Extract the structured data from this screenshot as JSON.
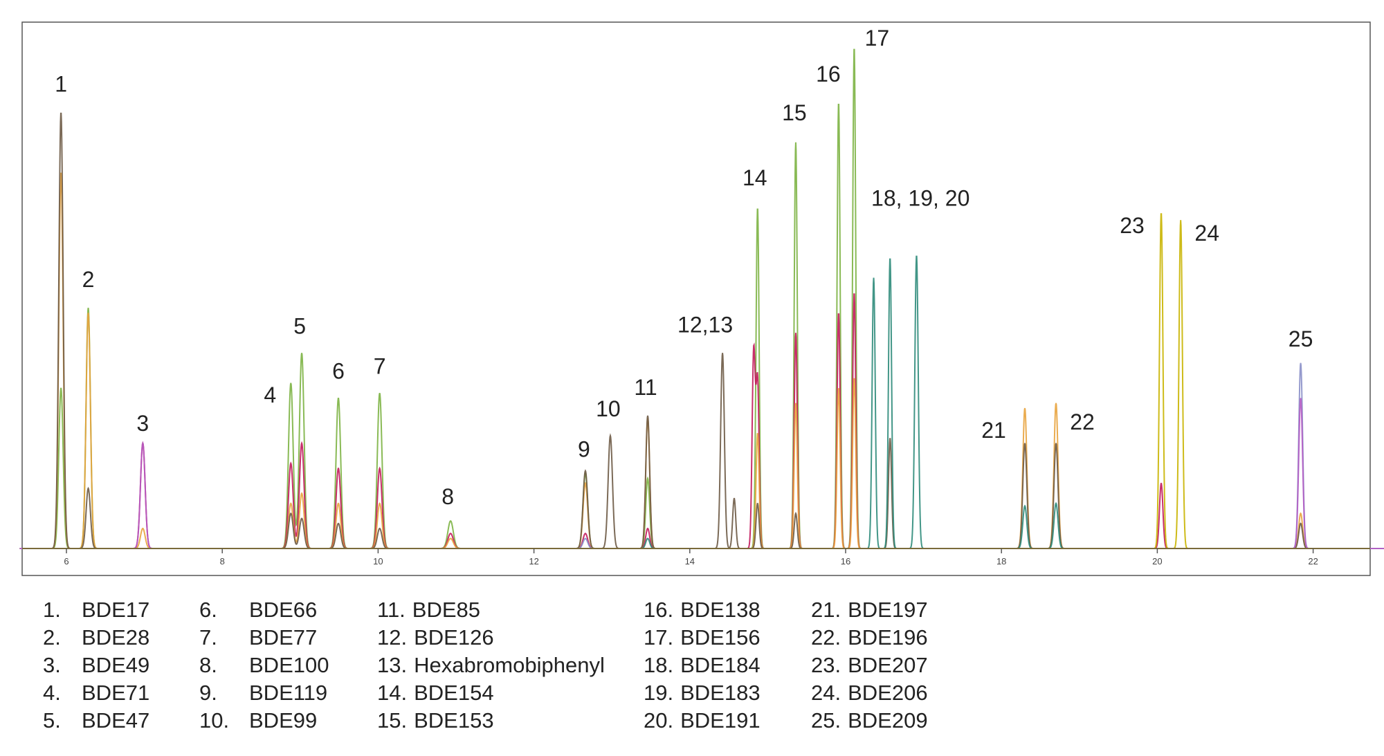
{
  "chart_data": {
    "type": "line",
    "title": "",
    "xlabel": "",
    "ylabel": "",
    "xlim": [
      5.4,
      23.2
    ],
    "ylim": [
      0,
      1.0
    ],
    "x_ticks": [
      6,
      8,
      10,
      12,
      14,
      16,
      18,
      20,
      22
    ],
    "x_tick_labels": [
      "6",
      "8",
      "10",
      "12",
      "14",
      "16",
      "18",
      "20",
      "22"
    ],
    "grid": false,
    "trace_colors": [
      "#7cb342",
      "#c2185b",
      "#e8a33d",
      "#6d5a45",
      "#c9b400",
      "#2e8b7a",
      "#8a8fc8",
      "#b55cc4"
    ],
    "peaks": [
      {
        "label": "1",
        "x": 5.93,
        "heights": [
          0.32,
          0,
          0.75,
          0.87,
          0,
          0,
          0,
          0
        ],
        "width": 0.028
      },
      {
        "label": "2",
        "x": 6.28,
        "heights": [
          0.48,
          0,
          0.47,
          0.12,
          0,
          0,
          0,
          0
        ],
        "width": 0.028
      },
      {
        "label": "3",
        "x": 6.98,
        "heights": [
          0,
          0.21,
          0.04,
          0,
          0,
          0,
          0,
          0.21
        ],
        "width": 0.03
      },
      {
        "label": "4",
        "x": 8.88,
        "heights": [
          0.33,
          0.17,
          0.09,
          0.07,
          0,
          0,
          0,
          0
        ],
        "width": 0.03
      },
      {
        "label": "5",
        "x": 9.02,
        "heights": [
          0.39,
          0.21,
          0.11,
          0.06,
          0,
          0,
          0,
          0
        ],
        "width": 0.03
      },
      {
        "label": "6",
        "x": 9.49,
        "heights": [
          0.3,
          0.16,
          0.09,
          0.05,
          0,
          0,
          0,
          0
        ],
        "width": 0.03
      },
      {
        "label": "7",
        "x": 10.02,
        "heights": [
          0.31,
          0.16,
          0.09,
          0.04,
          0,
          0,
          0,
          0
        ],
        "width": 0.03
      },
      {
        "label": "8",
        "x": 10.93,
        "heights": [
          0.055,
          0.03,
          0.02,
          0,
          0,
          0,
          0,
          0
        ],
        "width": 0.035
      },
      {
        "label": "9",
        "x": 12.66,
        "heights": [
          0.15,
          0.03,
          0.13,
          0.155,
          0,
          0,
          0.02,
          0
        ],
        "width": 0.03
      },
      {
        "label": "10",
        "x": 12.98,
        "heights": [
          0,
          0,
          0,
          0.225,
          0,
          0,
          0,
          0
        ],
        "width": 0.028
      },
      {
        "label": "11",
        "x": 13.46,
        "heights": [
          0.14,
          0.04,
          0.26,
          0.265,
          0,
          0.02,
          0,
          0
        ],
        "width": 0.025
      },
      {
        "label": "12,13",
        "x": 14.42,
        "heights": [
          0,
          0,
          0,
          0.39,
          0,
          0,
          0,
          0
        ],
        "width": 0.024
      },
      {
        "label": "",
        "x": 14.57,
        "heights": [
          0,
          0,
          0,
          0.1,
          0,
          0,
          0,
          0
        ],
        "width": 0.02
      },
      {
        "label": "",
        "x": 14.82,
        "heights": [
          0,
          0.39,
          0,
          0,
          0,
          0,
          0,
          0
        ],
        "width": 0.02
      },
      {
        "label": "14",
        "x": 14.87,
        "heights": [
          0.68,
          0.33,
          0.23,
          0.09,
          0,
          0,
          0,
          0
        ],
        "width": 0.02
      },
      {
        "label": "15",
        "x": 15.36,
        "heights": [
          0.81,
          0.43,
          0.29,
          0.07,
          0,
          0,
          0,
          0
        ],
        "width": 0.02
      },
      {
        "label": "16",
        "x": 15.91,
        "heights": [
          0.89,
          0.47,
          0.32,
          0,
          0,
          0,
          0,
          0
        ],
        "width": 0.02
      },
      {
        "label": "17",
        "x": 16.11,
        "heights": [
          1.0,
          0.51,
          0.34,
          0,
          0,
          0,
          0,
          0
        ],
        "width": 0.02
      },
      {
        "label": "",
        "x": 16.36,
        "heights": [
          0,
          0,
          0,
          0,
          0,
          0.54,
          0,
          0
        ],
        "width": 0.02
      },
      {
        "label": "18, 19, 20",
        "x": 16.57,
        "heights": [
          0,
          0,
          0,
          0.22,
          0,
          0.58,
          0,
          0
        ],
        "width": 0.02
      },
      {
        "label": "",
        "x": 16.91,
        "heights": [
          0,
          0,
          0,
          0,
          0,
          0.585,
          0,
          0
        ],
        "width": 0.022
      },
      {
        "label": "21",
        "x": 18.3,
        "heights": [
          0,
          0,
          0.28,
          0.21,
          0,
          0.085,
          0,
          0
        ],
        "width": 0.026
      },
      {
        "label": "22",
        "x": 18.7,
        "heights": [
          0,
          0,
          0.29,
          0.21,
          0,
          0.09,
          0,
          0
        ],
        "width": 0.026
      },
      {
        "label": "23",
        "x": 20.05,
        "heights": [
          0,
          0.13,
          0,
          0,
          0.67,
          0,
          0,
          0
        ],
        "width": 0.022
      },
      {
        "label": "24",
        "x": 20.3,
        "heights": [
          0,
          0,
          0,
          0,
          0.655,
          0,
          0,
          0
        ],
        "width": 0.022
      },
      {
        "label": "25",
        "x": 21.84,
        "heights": [
          0,
          0,
          0.07,
          0.05,
          0,
          0,
          0.37,
          0.3
        ],
        "width": 0.025
      }
    ]
  },
  "legend": {
    "columns": [
      [
        {
          "num": "1.",
          "name": "BDE17"
        },
        {
          "num": "2.",
          "name": "BDE28"
        },
        {
          "num": "3.",
          "name": "BDE49"
        },
        {
          "num": "4.",
          "name": "BDE71"
        },
        {
          "num": "5.",
          "name": "BDE47"
        }
      ],
      [
        {
          "num": "6.",
          "name": "BDE66"
        },
        {
          "num": "7.",
          "name": "BDE77"
        },
        {
          "num": "8.",
          "name": "BDE100"
        },
        {
          "num": "9.",
          "name": "BDE119"
        },
        {
          "num": "10.",
          "name": "BDE99"
        }
      ],
      [
        {
          "num": "11.",
          "name": "BDE85"
        },
        {
          "num": "12.",
          "name": "BDE126"
        },
        {
          "num": "13.",
          "name": "Hexabromobiphenyl"
        },
        {
          "num": "14.",
          "name": "BDE154"
        },
        {
          "num": "15.",
          "name": "BDE153"
        }
      ],
      [
        {
          "num": "16.",
          "name": "BDE138"
        },
        {
          "num": "17.",
          "name": "BDE156"
        },
        {
          "num": "18.",
          "name": "BDE184"
        },
        {
          "num": "19.",
          "name": "BDE183"
        },
        {
          "num": "20.",
          "name": "BDE191"
        }
      ],
      [
        {
          "num": "21.",
          "name": "BDE197"
        },
        {
          "num": "22.",
          "name": "BDE196"
        },
        {
          "num": "23.",
          "name": "BDE207"
        },
        {
          "num": "24.",
          "name": "BDE206"
        },
        {
          "num": "25.",
          "name": "BDE209"
        }
      ]
    ]
  }
}
